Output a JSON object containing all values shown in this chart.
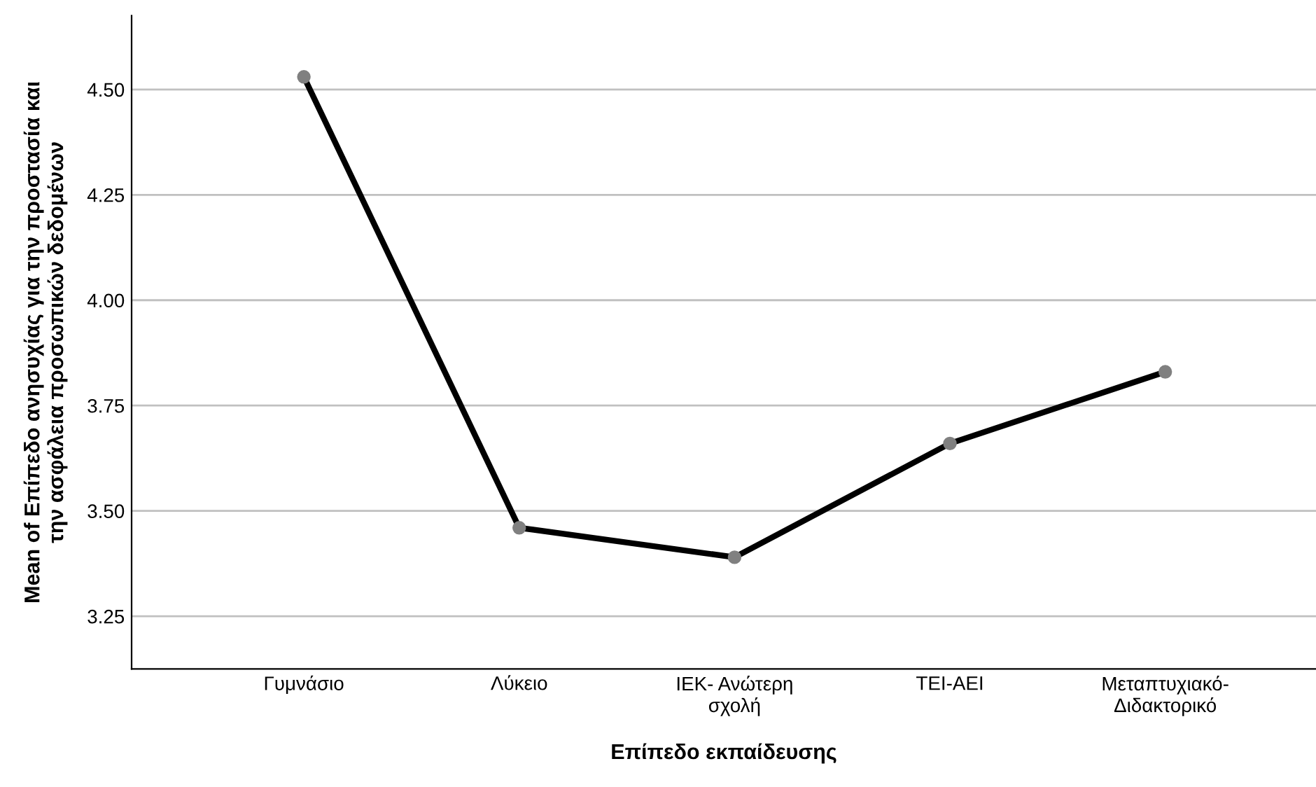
{
  "chart_data": {
    "type": "line",
    "xlabel": "Επίπεδο εκπαίδευσης",
    "ylabel": "Mean of Επίπεδο ανησυχίας για την προστασία και\nτην ασφάλεια προσωπικών δεδομένων",
    "categories": [
      "Γυμνάσιο",
      "Λύκειο",
      "ΙΕΚ- Ανώτερη\nσχολή",
      "ΤΕΙ-ΑΕΙ",
      "Μεταπτυχιακό-\nΔιδακτορικό"
    ],
    "series": [
      {
        "color": "#000000",
        "values": [
          4.53,
          3.46,
          3.39,
          3.66,
          3.83
        ]
      }
    ],
    "marker": "circle",
    "line_style": "solid",
    "ylim": [
      3.125,
      4.675
    ],
    "yticks": [
      {
        "value": 3.25,
        "label": "3.25"
      },
      {
        "value": 3.5,
        "label": "3.50"
      },
      {
        "value": 3.75,
        "label": "3.75"
      },
      {
        "value": 4.0,
        "label": "4.00"
      },
      {
        "value": 4.25,
        "label": "4.25"
      },
      {
        "value": 4.5,
        "label": "4.50"
      }
    ],
    "grid": "y"
  }
}
